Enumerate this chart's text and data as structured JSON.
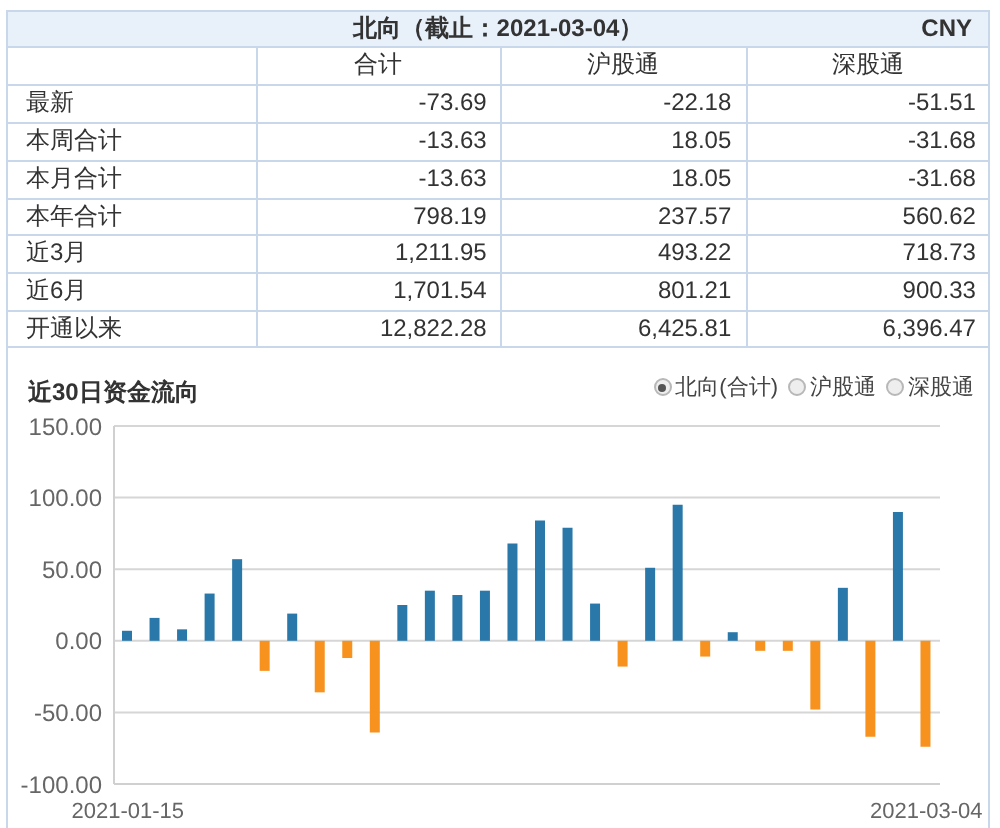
{
  "chart_data": [
    {
      "type": "other",
      "title": "北向（截止：2021-03-04）",
      "annotations": [
        "CNY"
      ],
      "categories": [
        "最新",
        "本周合计",
        "本月合计",
        "本年合计",
        "近3月",
        "近6月",
        "开通以来"
      ],
      "series": [
        {
          "name": "合计",
          "values": [
            -73.69,
            -13.63,
            -13.63,
            798.19,
            1211.95,
            1701.54,
            12822.28
          ],
          "value_labels": [
            "-73.69",
            "-13.63",
            "-13.63",
            "798.19",
            "1,211.95",
            "1,701.54",
            "12,822.28"
          ]
        },
        {
          "name": "沪股通",
          "values": [
            -22.18,
            18.05,
            18.05,
            237.57,
            493.22,
            801.21,
            6425.81
          ],
          "value_labels": [
            "-22.18",
            "18.05",
            "18.05",
            "237.57",
            "493.22",
            "801.21",
            "6,425.81"
          ]
        },
        {
          "name": "深股通",
          "values": [
            -51.51,
            -31.68,
            -31.68,
            560.62,
            718.73,
            900.33,
            6396.47
          ],
          "value_labels": [
            "-51.51",
            "-31.68",
            "-31.68",
            "560.62",
            "718.73",
            "900.33",
            "6,396.47"
          ]
        }
      ]
    },
    {
      "type": "bar",
      "title": "近30日资金流向",
      "annotations": [
        "北向(合计)",
        "沪股通",
        "深股通"
      ],
      "categories": [
        "2021-01-15",
        null,
        null,
        null,
        null,
        null,
        null,
        null,
        null,
        null,
        null,
        null,
        null,
        null,
        null,
        null,
        null,
        null,
        null,
        null,
        null,
        null,
        null,
        null,
        null,
        null,
        null,
        null,
        null,
        "2021-03-04"
      ],
      "values": [
        7,
        16,
        8,
        33,
        57,
        -21,
        19,
        -36,
        -12,
        -64,
        25,
        35,
        32,
        35,
        68,
        84,
        79,
        26,
        -18,
        51,
        95,
        -11,
        6,
        -7,
        -7,
        -48,
        37,
        -67,
        90,
        -74
      ],
      "colors": [
        "#2a78a9",
        "#2a78a9",
        "#2a78a9",
        "#2a78a9",
        "#2a78a9",
        "#f7921e",
        "#2a78a9",
        "#f7921e",
        "#f7921e",
        "#f7921e",
        "#2a78a9",
        "#2a78a9",
        "#2a78a9",
        "#2a78a9",
        "#2a78a9",
        "#2a78a9",
        "#2a78a9",
        "#2a78a9",
        "#f7921e",
        "#2a78a9",
        "#2a78a9",
        "#f7921e",
        "#2a78a9",
        "#f7921e",
        "#f7921e",
        "#f7921e",
        "#2a78a9",
        "#f7921e",
        "#2a78a9",
        "#f7921e"
      ],
      "ylim": [
        -100,
        150
      ],
      "yticks": [
        {
          "value": -100,
          "label": "-100.00"
        },
        {
          "value": -50,
          "label": "-50.00"
        },
        {
          "value": 0,
          "label": "0.00"
        },
        {
          "value": 50,
          "label": "50.00"
        },
        {
          "value": 100,
          "label": "100.00"
        },
        {
          "value": 150,
          "label": "150.00"
        }
      ],
      "grid": "y"
    }
  ]
}
